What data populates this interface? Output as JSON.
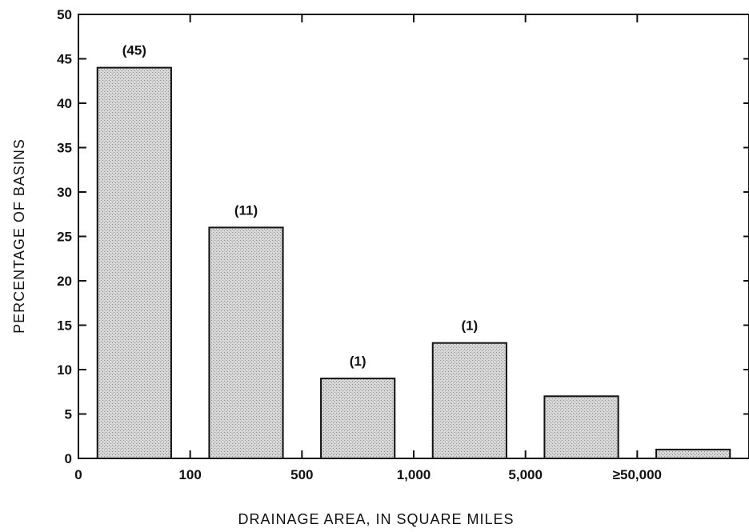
{
  "chart_data": {
    "type": "bar",
    "title": "",
    "xlabel": "DRAINAGE AREA, IN SQUARE MILES",
    "ylabel": "PERCENTAGE OF BASINS",
    "ylim": [
      0,
      50
    ],
    "yticks": [
      0,
      5,
      10,
      15,
      20,
      25,
      30,
      35,
      40,
      45,
      50
    ],
    "xtick_labels": [
      "0",
      "100",
      "500",
      "1,000",
      "5,000",
      "≥50,000"
    ],
    "categories": [
      "0–100",
      "100–500",
      "500–1,000",
      "1,000–5,000",
      "5,000–50,000",
      "≥50,000"
    ],
    "values": [
      44,
      26,
      9,
      13,
      7,
      1
    ],
    "bar_labels": [
      "(45)",
      "(11)",
      "(1)",
      "(1)",
      "",
      ""
    ],
    "grid": false,
    "legend": "none",
    "colors": {
      "bar_fill": "#cfcfcf",
      "bar_stroke": "#111111",
      "axis": "#111111"
    }
  }
}
